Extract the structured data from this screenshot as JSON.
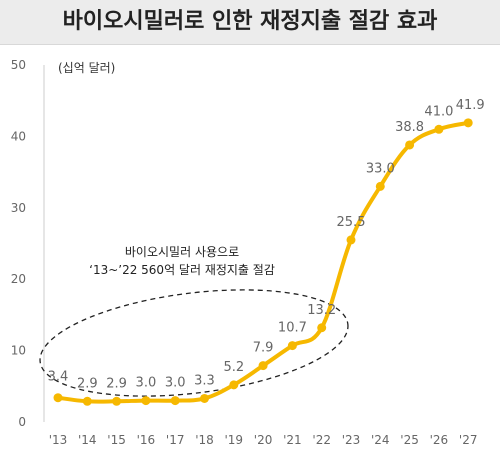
{
  "chart_data": {
    "type": "line",
    "title": "바이오시밀러로 인한 재정지출 절감 효과",
    "unit_label": "(십억 달러)",
    "categories": [
      "'13",
      "'14",
      "'15",
      "'16",
      "'17",
      "'18",
      "'19",
      "'20",
      "'21",
      "'22",
      "'23",
      "'24",
      "'25",
      "'26",
      "'27"
    ],
    "series": [
      {
        "values": [
          3.4,
          2.9,
          2.9,
          3.0,
          3.0,
          3.3,
          5.2,
          7.9,
          10.7,
          13.2,
          25.5,
          33.0,
          38.8,
          41.0,
          41.9
        ]
      }
    ],
    "value_labels": [
      "3.4",
      "2.9",
      "2.9",
      "3.0",
      "3.0",
      "3.3",
      "5.2",
      "7.9",
      "10.7",
      "13.2",
      "25.5",
      "33.0",
      "38.8",
      "41.0",
      "41.9"
    ],
    "ylim": [
      0,
      50
    ],
    "yticks": [
      0,
      10,
      20,
      30,
      40,
      50
    ],
    "grid": false,
    "line_color": "#f6b800",
    "annotation": {
      "line1": "바이오시밀러 사용으로",
      "line2": "‘13~’22 560억 달러 재정지출 절감"
    }
  }
}
